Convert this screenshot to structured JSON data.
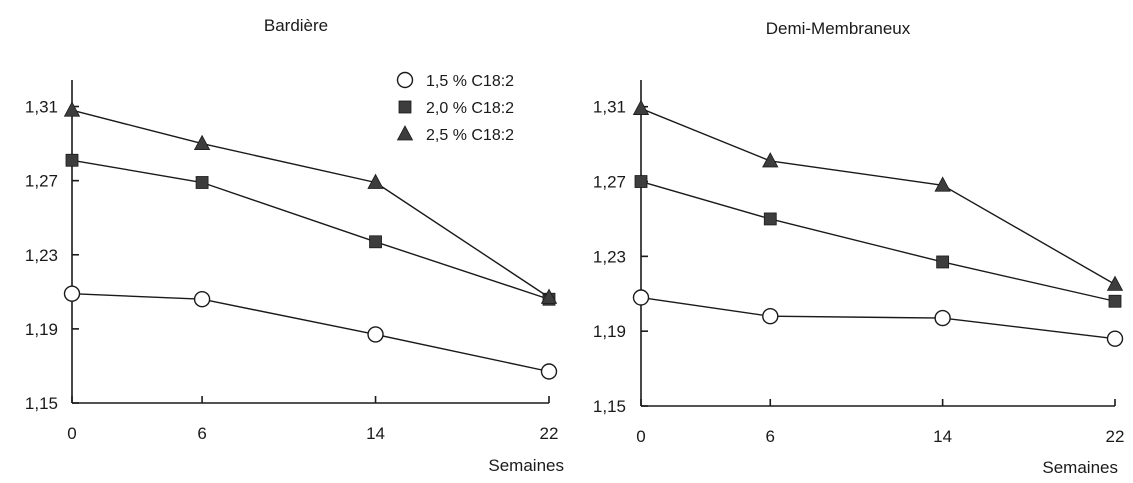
{
  "chart_data": [
    {
      "type": "line",
      "title": "Bardière",
      "xlabel": "Semaines",
      "ylabel": "",
      "x": [
        0,
        6,
        14,
        22
      ],
      "x_ticks": [
        "0",
        "6",
        "14",
        "22"
      ],
      "y_ticks": [
        "1,15",
        "1,19",
        "1,23",
        "1,27",
        "1,31"
      ],
      "ylim": [
        1.15,
        1.32
      ],
      "grid": false,
      "legend": "top-right",
      "series": [
        {
          "name": "1,5 % C18:2",
          "marker": "circle",
          "values": [
            1.209,
            1.206,
            1.187,
            1.167
          ]
        },
        {
          "name": "2,0 % C18:2",
          "marker": "square",
          "values": [
            1.281,
            1.269,
            1.237,
            1.206
          ]
        },
        {
          "name": "2,5 % C18:2",
          "marker": "triangle",
          "values": [
            1.308,
            1.29,
            1.269,
            1.207
          ]
        }
      ]
    },
    {
      "type": "line",
      "title": "Demi-Membraneux",
      "xlabel": "Semaines",
      "ylabel": "",
      "x": [
        0,
        6,
        14,
        22
      ],
      "x_ticks": [
        "0",
        "6",
        "14",
        "22"
      ],
      "y_ticks": [
        "1,15",
        "1,19",
        "1,23",
        "1,27",
        "1,31"
      ],
      "ylim": [
        1.15,
        1.32
      ],
      "grid": false,
      "legend": "none",
      "series": [
        {
          "name": "1,5 % C18:2",
          "marker": "circle",
          "values": [
            1.208,
            1.198,
            1.197,
            1.186
          ]
        },
        {
          "name": "2,0 % C18:2",
          "marker": "square",
          "values": [
            1.27,
            1.25,
            1.227,
            1.206
          ]
        },
        {
          "name": "2,5 % C18:2",
          "marker": "triangle",
          "values": [
            1.309,
            1.281,
            1.268,
            1.215
          ]
        }
      ]
    }
  ]
}
